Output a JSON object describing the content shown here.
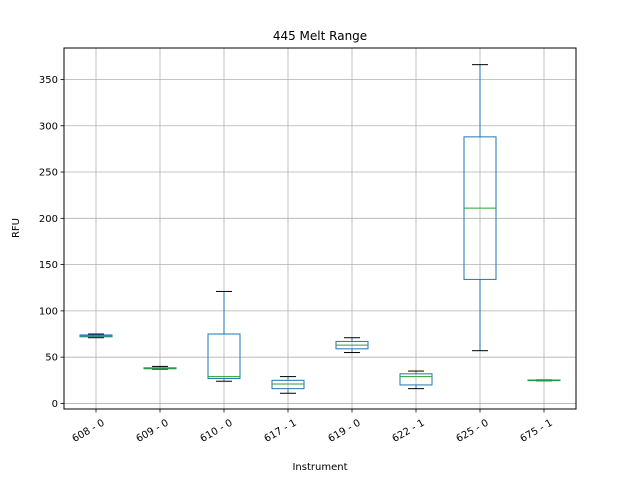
{
  "chart_data": {
    "type": "box",
    "title": "445 Melt Range",
    "xlabel": "Instrument",
    "ylabel": "RFU",
    "ylim": [
      -6,
      384
    ],
    "yticks": [
      0,
      50,
      100,
      150,
      200,
      250,
      300,
      350
    ],
    "grid": true,
    "categories": [
      "608 - 0",
      "609 - 0",
      "610 - 0",
      "617 - 1",
      "619 - 0",
      "622 - 1",
      "625 - 0",
      "675 - 1"
    ],
    "boxes": [
      {
        "whisker_low": 71,
        "q1": 72,
        "median": 73,
        "q3": 74,
        "whisker_high": 75
      },
      {
        "whisker_low": 37,
        "q1": 37.5,
        "median": 38,
        "q3": 38.5,
        "whisker_high": 40
      },
      {
        "whisker_low": 24,
        "q1": 27,
        "median": 29,
        "q3": 75,
        "whisker_high": 121
      },
      {
        "whisker_low": 11,
        "q1": 16,
        "median": 21,
        "q3": 25,
        "whisker_high": 29
      },
      {
        "whisker_low": 55,
        "q1": 59,
        "median": 63,
        "q3": 67,
        "whisker_high": 71
      },
      {
        "whisker_low": 16,
        "q1": 20,
        "median": 29,
        "q3": 32,
        "whisker_high": 35
      },
      {
        "whisker_low": 57,
        "q1": 134,
        "median": 211,
        "q3": 288,
        "whisker_high": 366
      },
      {
        "whisker_low": 24.5,
        "q1": 24.7,
        "median": 25,
        "q3": 25.3,
        "whisker_high": 25.5
      }
    ],
    "colors": {
      "box": "#1f77b4",
      "median": "#2ca02c",
      "whisker_cap": "#000000",
      "grid": "#b0b0b0",
      "axis": "#000000"
    }
  }
}
